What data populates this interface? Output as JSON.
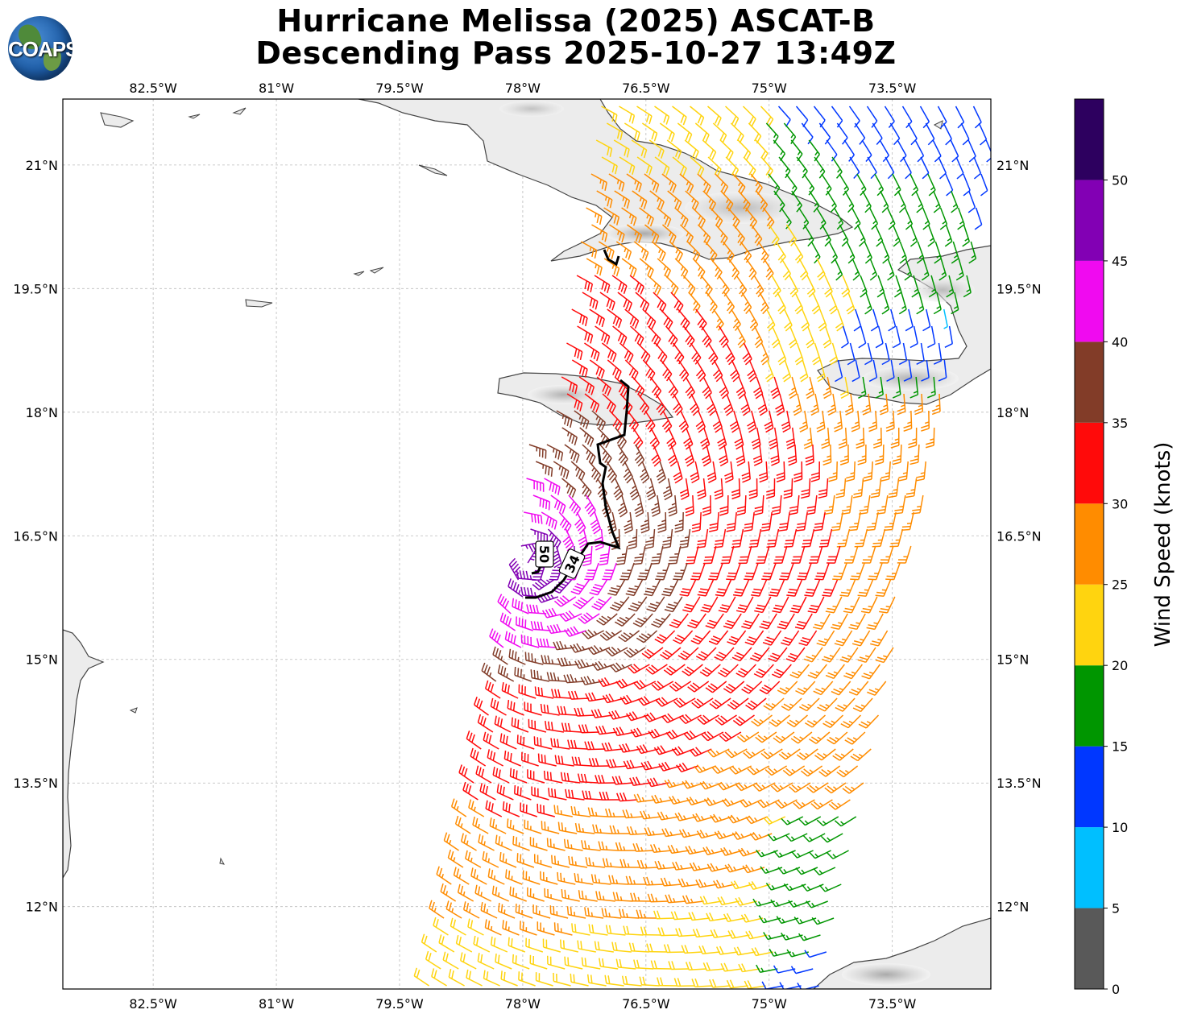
{
  "title": {
    "line1": "Hurricane Melissa (2025) ASCAT-B",
    "line2": "Descending Pass 2025-10-27 13:49Z"
  },
  "logo": {
    "text": "COAPS"
  },
  "map": {
    "lon_range": [
      -83.6,
      -72.3
    ],
    "lat_range": [
      11.0,
      21.8
    ],
    "x_ticks": [
      "82.5°W",
      "81°W",
      "79.5°W",
      "78°W",
      "76.5°W",
      "75°W",
      "73.5°W"
    ],
    "y_ticks": [
      "21°N",
      "19.5°N",
      "18°N",
      "16.5°N",
      "15°N",
      "13.5°N",
      "12°N"
    ],
    "grid": true
  },
  "wind_radii_labels": {
    "r50": "50",
    "r34": "34"
  },
  "colorbar": {
    "label": "Wind Speed (knots)",
    "ticks": [
      "0",
      "5",
      "10",
      "15",
      "20",
      "25",
      "30",
      "35",
      "40",
      "45",
      "50"
    ],
    "bins": [
      {
        "from": 0,
        "to": 5,
        "color": "#595959"
      },
      {
        "from": 5,
        "to": 10,
        "color": "#00bfff"
      },
      {
        "from": 10,
        "to": 15,
        "color": "#0037ff"
      },
      {
        "from": 15,
        "to": 20,
        "color": "#009600"
      },
      {
        "from": 20,
        "to": 25,
        "color": "#ffd40f"
      },
      {
        "from": 25,
        "to": 30,
        "color": "#ff8c00"
      },
      {
        "from": 30,
        "to": 35,
        "color": "#ff0a0a"
      },
      {
        "from": 35,
        "to": 40,
        "color": "#823c28"
      },
      {
        "from": 40,
        "to": 45,
        "color": "#f00af0"
      },
      {
        "from": 45,
        "to": 50,
        "color": "#8200b4"
      },
      {
        "from": 50,
        "to": 55,
        "color": "#2d005f"
      }
    ]
  },
  "colors": {
    "coast": "#444444",
    "grid": "#bbbbbb",
    "terrain": "#c8c8c8"
  }
}
